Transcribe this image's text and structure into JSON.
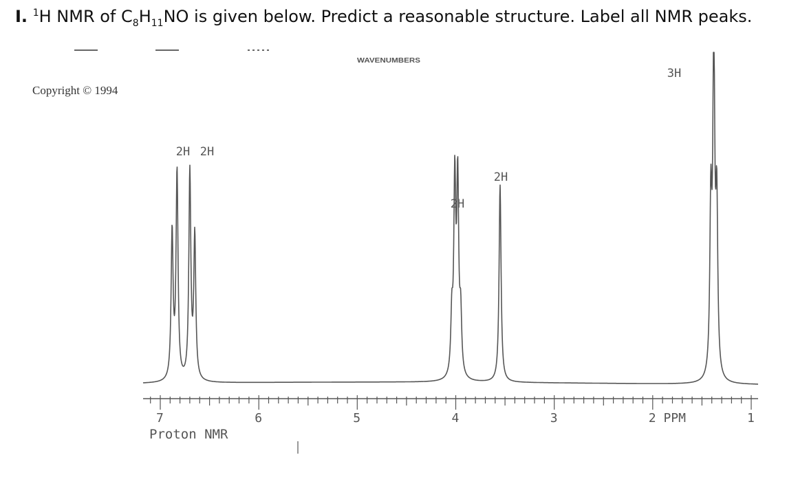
{
  "question": {
    "number": "I.",
    "superscript": "1",
    "p1": "H NMR of C",
    "sub1": "8",
    "p2": "H",
    "sub2": "11",
    "p3": "NO is given below. Predict a reasonable structure. Label all NMR peaks."
  },
  "header_label": "WAVENUMBERS",
  "copyright": "Copyright © 1994",
  "footer_label": "Proton NMR",
  "colors": {
    "ink": "#555555",
    "text": "#111111"
  },
  "chart_data": {
    "type": "line",
    "title": "",
    "xlabel": "PPM",
    "x_reversed": true,
    "xlim": [
      7.0,
      1.0
    ],
    "ticks": [
      {
        "ppm": 7.0,
        "label": "7"
      },
      {
        "ppm": 6.0,
        "label": "6"
      },
      {
        "ppm": 5.0,
        "label": "5"
      },
      {
        "ppm": 4.0,
        "label": "4"
      },
      {
        "ppm": 3.0,
        "label": "3"
      },
      {
        "ppm": 2.0,
        "label": "2 PPM"
      },
      {
        "ppm": 1.0,
        "label": "1"
      }
    ],
    "peaks": [
      {
        "shift": 6.85,
        "multiplicity": "doublet",
        "integration": "2H",
        "lines": [
          6.88,
          6.83
        ],
        "heights": [
          0.71,
          1.0
        ]
      },
      {
        "shift": 6.67,
        "multiplicity": "doublet",
        "integration": "2H",
        "lines": [
          6.7,
          6.65
        ],
        "heights": [
          1.0,
          0.69
        ]
      },
      {
        "shift": 3.99,
        "multiplicity": "quartet",
        "integration": "2H",
        "lines": [
          4.04,
          4.01,
          3.98,
          3.95
        ],
        "heights": [
          0.3,
          1.0,
          1.0,
          0.3
        ]
      },
      {
        "shift": 3.55,
        "multiplicity": "singlet",
        "integration": "2H",
        "lines": [
          3.55
        ],
        "heights": [
          1.0
        ]
      },
      {
        "shift": 1.38,
        "multiplicity": "triplet",
        "integration": "3H",
        "lines": [
          1.41,
          1.38,
          1.35
        ],
        "heights": [
          0.5,
          1.0,
          0.5
        ]
      }
    ]
  }
}
